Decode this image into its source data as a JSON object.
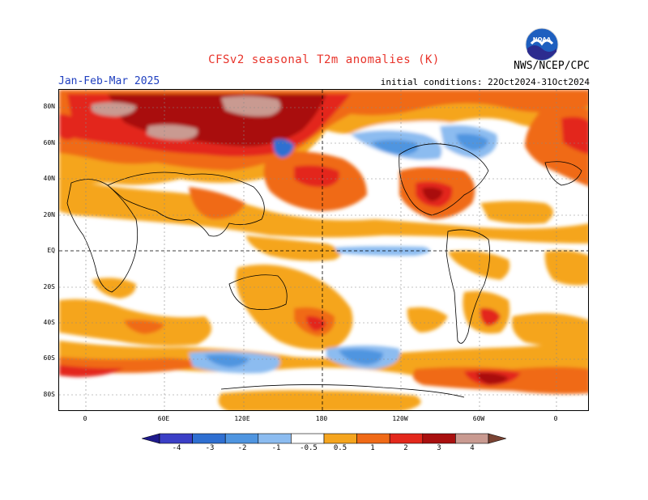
{
  "header": {
    "title": "CFSv2 seasonal T2m anomalies (K)",
    "period": "Jan-Feb-Mar 2025",
    "initial_conditions": "initial conditions: 22Oct2024-31Oct2024",
    "agency": "NWS/NCEP/CPC",
    "logo_text": "NOAA"
  },
  "axes": {
    "lat_labels": [
      "80N",
      "60N",
      "40N",
      "20N",
      "EQ",
      "20S",
      "40S",
      "60S",
      "80S"
    ],
    "lon_labels": [
      "0",
      "60E",
      "120E",
      "180",
      "120W",
      "60W",
      "0"
    ]
  },
  "colorbar": {
    "ticks": [
      "-4",
      "-3",
      "-2",
      "-1",
      "-0.5",
      "0.5",
      "1",
      "2",
      "3",
      "4"
    ],
    "colors": [
      "#1e1a8c",
      "#3b3fc6",
      "#2f6fd1",
      "#4f95e0",
      "#8cbcf0",
      "#ffffff",
      "#f5a51f",
      "#f06a17",
      "#e3281c",
      "#a9100f",
      "#c99a91",
      "#7a4333"
    ]
  }
}
